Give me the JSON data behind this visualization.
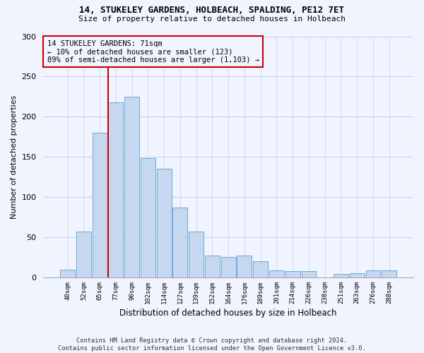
{
  "title": "14, STUKELEY GARDENS, HOLBEACH, SPALDING, PE12 7ET",
  "subtitle": "Size of property relative to detached houses in Holbeach",
  "xlabel": "Distribution of detached houses by size in Holbeach",
  "ylabel": "Number of detached properties",
  "bar_labels": [
    "40sqm",
    "52sqm",
    "65sqm",
    "77sqm",
    "90sqm",
    "102sqm",
    "114sqm",
    "127sqm",
    "139sqm",
    "152sqm",
    "164sqm",
    "176sqm",
    "189sqm",
    "201sqm",
    "214sqm",
    "226sqm",
    "238sqm",
    "251sqm",
    "263sqm",
    "276sqm",
    "288sqm"
  ],
  "bar_values": [
    10,
    57,
    180,
    218,
    225,
    148,
    135,
    87,
    57,
    27,
    25,
    27,
    20,
    9,
    8,
    8,
    0,
    4,
    5,
    9,
    9
  ],
  "bar_color": "#c5d8f0",
  "bar_edge_color": "#6aaad4",
  "annotation_box_text": "14 STUKELEY GARDENS: 71sqm\n← 10% of detached houses are smaller (123)\n89% of semi-detached houses are larger (1,103) →",
  "vline_color": "#cc0000",
  "ylim": [
    0,
    300
  ],
  "yticks": [
    0,
    50,
    100,
    150,
    200,
    250,
    300
  ],
  "footer_text": "Contains HM Land Registry data © Crown copyright and database right 2024.\nContains public sector information licensed under the Open Government Licence v3.0.",
  "background_color": "#f0f4ff",
  "grid_color": "#c8cce8",
  "vline_bar_index": 2.5
}
